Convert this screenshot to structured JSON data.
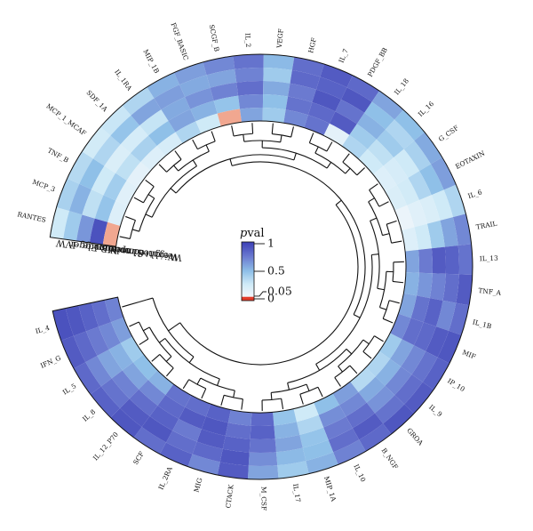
{
  "chart_data": {
    "type": "heatmap",
    "layout": "circular",
    "color_metric": "pval",
    "legend": {
      "title_italic": "p",
      "title_rest": "val",
      "ticks": [
        "1",
        "0.5",
        "0.05",
        "0"
      ],
      "tick_values": [
        1,
        0.5,
        0.05,
        0
      ]
    },
    "colors": {
      "high": "#3c3fb6",
      "mid_high": "#6b7ad0",
      "mid": "#8fc0e8",
      "low": "#cfeaf7",
      "near_zero": "#f2f6fb",
      "significant": "#f1a790"
    },
    "tracks": [
      "IVW",
      "MR Egger",
      "Simple mode",
      "Weighted median",
      "Weighted mode"
    ],
    "categories": [
      "RANTES",
      "MCP_3",
      "TNF_B",
      "MCP_1_MCAF",
      "SDF_1A",
      "IL_1RA",
      "MIP_1B",
      "FGF_BASIC",
      "SCGF_B",
      "IL_2",
      "VEGF",
      "HGF",
      "IL_7",
      "PDGF_BB",
      "IL_18",
      "IL_16",
      "G_CSF",
      "EOTAXIN",
      "IL_6",
      "TRAIL",
      "IL_13",
      "TNF_A",
      "IL_1B",
      "MIF",
      "IP_10",
      "IL_9",
      "GROA",
      "B_NGF",
      "IL_10",
      "MIP_1A",
      "IL_17",
      "M_CSF",
      "CTACK",
      "MIG",
      "IL_2RA",
      "SCF",
      "IL_12_P70",
      "IL_8",
      "IL_5",
      "IFN_G",
      "IL_4"
    ],
    "values": [
      [
        0.3,
        0.45,
        0.65,
        0.92,
        0.02
      ],
      [
        0.42,
        0.55,
        0.35,
        0.48,
        0.2
      ],
      [
        0.38,
        0.5,
        0.3,
        0.44,
        0.18
      ],
      [
        0.28,
        0.4,
        0.22,
        0.35,
        0.15
      ],
      [
        0.32,
        0.48,
        0.26,
        0.42,
        0.2
      ],
      [
        0.4,
        0.6,
        0.33,
        0.5,
        0.25
      ],
      [
        0.55,
        0.62,
        0.58,
        0.6,
        0.4
      ],
      [
        0.62,
        0.58,
        0.66,
        0.55,
        0.3
      ],
      [
        0.7,
        0.6,
        0.72,
        0.48,
        0.03
      ],
      [
        0.78,
        0.72,
        0.8,
        0.7,
        0.6
      ],
      [
        0.52,
        0.45,
        0.58,
        0.5,
        0.45
      ],
      [
        0.8,
        0.82,
        0.75,
        0.78,
        0.7
      ],
      [
        0.88,
        0.85,
        0.9,
        0.82,
        0.78
      ],
      [
        0.82,
        0.9,
        0.78,
        0.88,
        0.15
      ],
      [
        0.6,
        0.5,
        0.55,
        0.45,
        0.4
      ],
      [
        0.5,
        0.4,
        0.45,
        0.35,
        0.3
      ],
      [
        0.58,
        0.42,
        0.3,
        0.25,
        0.2
      ],
      [
        0.62,
        0.5,
        0.4,
        0.28,
        0.22
      ],
      [
        0.4,
        0.3,
        0.22,
        0.18,
        0.1
      ],
      [
        0.7,
        0.6,
        0.45,
        0.3,
        0.2
      ],
      [
        0.78,
        0.85,
        0.88,
        0.75,
        0.6
      ],
      [
        0.88,
        0.8,
        0.72,
        0.65,
        0.55
      ],
      [
        0.8,
        0.7,
        0.85,
        0.78,
        0.6
      ],
      [
        0.9,
        0.88,
        0.82,
        0.8,
        0.7
      ],
      [
        0.85,
        0.78,
        0.7,
        0.6,
        0.45
      ],
      [
        0.88,
        0.8,
        0.7,
        0.55,
        0.4
      ],
      [
        0.9,
        0.78,
        0.66,
        0.58,
        0.38
      ],
      [
        0.82,
        0.88,
        0.8,
        0.7,
        0.62
      ],
      [
        0.72,
        0.8,
        0.75,
        0.68,
        0.5
      ],
      [
        0.55,
        0.5,
        0.48,
        0.4,
        0.3
      ],
      [
        0.45,
        0.52,
        0.6,
        0.55,
        0.48
      ],
      [
        0.6,
        0.68,
        0.78,
        0.85,
        0.82
      ],
      [
        0.88,
        0.9,
        0.85,
        0.8,
        0.72
      ],
      [
        0.7,
        0.82,
        0.88,
        0.9,
        0.85
      ],
      [
        0.85,
        0.8,
        0.75,
        0.88,
        0.8
      ],
      [
        0.8,
        0.9,
        0.85,
        0.82,
        0.78
      ],
      [
        0.9,
        0.88,
        0.8,
        0.7,
        0.55
      ],
      [
        0.85,
        0.78,
        0.72,
        0.6,
        0.5
      ],
      [
        0.82,
        0.7,
        0.6,
        0.55,
        0.45
      ],
      [
        0.88,
        0.82,
        0.75,
        0.7,
        0.62
      ],
      [
        0.92,
        0.9,
        0.85,
        0.8,
        0.72
      ]
    ]
  }
}
